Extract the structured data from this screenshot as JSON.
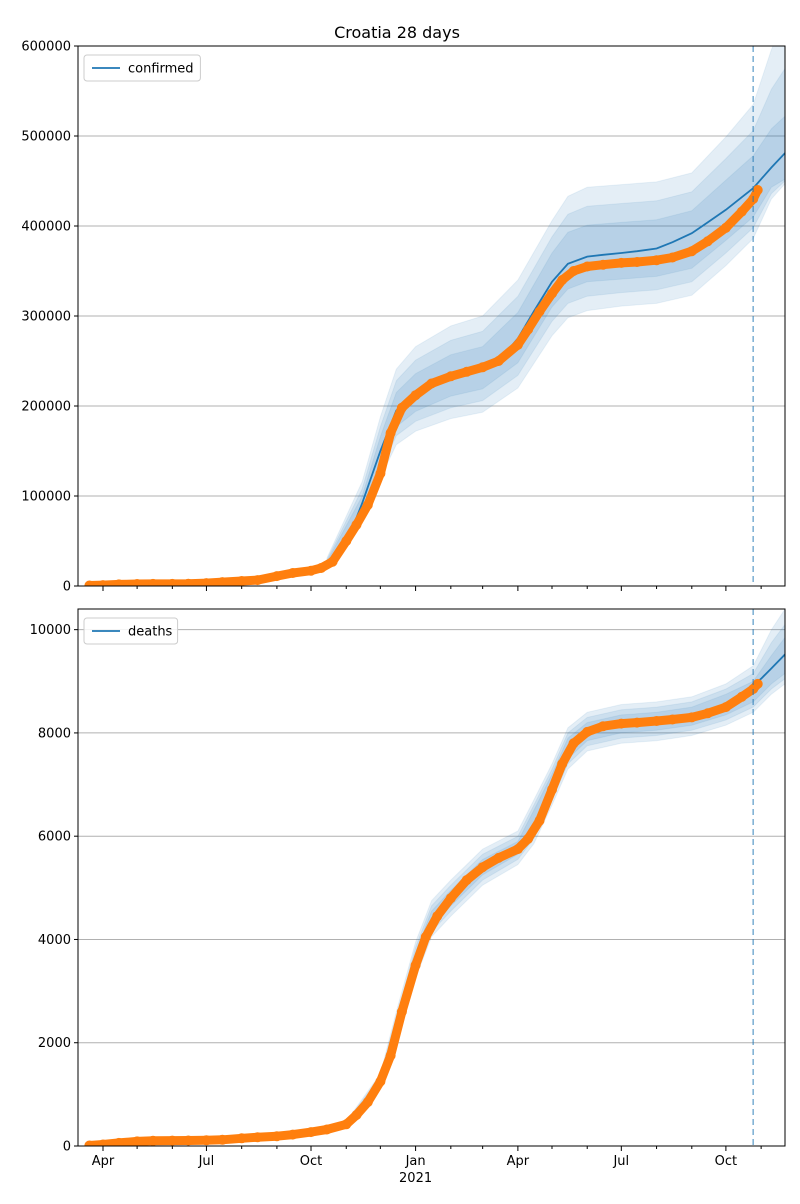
{
  "figure": {
    "title": "Croatia 28 days"
  },
  "colors": {
    "fit_line": "#1f77b4",
    "band": "#1f77b4",
    "observed": "#ff7f0e",
    "grid": "#b0b0b0",
    "cutoff_line": "#1f77b4"
  },
  "chart_data": [
    {
      "type": "line",
      "panel": "top",
      "title": "Croatia 28 days",
      "xlabel": "",
      "ylabel": "",
      "x_ticks": [
        "Apr",
        "Jul",
        "Oct",
        "Jan",
        "Apr",
        "Jul",
        "Oct"
      ],
      "x_year_label": "2021",
      "xlim": [
        "2020-03-10",
        "2021-11-22"
      ],
      "ylim": [
        0,
        600000
      ],
      "y_ticks": [
        0,
        100000,
        200000,
        300000,
        400000,
        500000,
        600000
      ],
      "y_tick_labels": [
        "0",
        "100000",
        "200000",
        "300000",
        "400000",
        "500000",
        "600000"
      ],
      "grid": "horizontal",
      "legend": {
        "position": "top-left",
        "entries": [
          "confirmed"
        ]
      },
      "cutoff_date": "2021-10-25",
      "series": [
        {
          "name": "confirmed",
          "role": "fit",
          "x": [
            "2020-10-15",
            "2020-11-01",
            "2020-11-15",
            "2020-12-01",
            "2020-12-15",
            "2021-01-01",
            "2021-01-15",
            "2021-02-01",
            "2021-02-15",
            "2021-03-01",
            "2021-03-15",
            "2021-04-01",
            "2021-04-15",
            "2021-05-01",
            "2021-05-15",
            "2021-06-01",
            "2021-06-15",
            "2021-07-01",
            "2021-07-15",
            "2021-08-01",
            "2021-08-15",
            "2021-09-01",
            "2021-09-15",
            "2021-10-01",
            "2021-10-15",
            "2021-10-25",
            "2021-11-01",
            "2021-11-10",
            "2021-11-22"
          ],
          "y": [
            25000,
            47000,
            92000,
            150000,
            195000,
            214000,
            225000,
            233000,
            238000,
            242000,
            250000,
            275000,
            305000,
            338000,
            358000,
            366000,
            368000,
            370000,
            372000,
            375000,
            382000,
            392000,
            404000,
            418000,
            432000,
            442000,
            452000,
            465000,
            481000
          ]
        },
        {
          "name": "",
          "role": "observed",
          "x": [
            "2020-03-20",
            "2020-04-01",
            "2020-04-15",
            "2020-05-01",
            "2020-05-15",
            "2020-06-01",
            "2020-06-15",
            "2020-07-01",
            "2020-07-15",
            "2020-08-01",
            "2020-08-15",
            "2020-09-01",
            "2020-09-15",
            "2020-10-01",
            "2020-10-10",
            "2020-10-20",
            "2020-11-01",
            "2020-11-10",
            "2020-11-20",
            "2020-12-01",
            "2020-12-10",
            "2020-12-20",
            "2021-01-01",
            "2021-01-15",
            "2021-02-01",
            "2021-02-15",
            "2021-03-01",
            "2021-03-15",
            "2021-04-01",
            "2021-04-10",
            "2021-04-20",
            "2021-05-01",
            "2021-05-10",
            "2021-05-20",
            "2021-06-01",
            "2021-06-15",
            "2021-07-01",
            "2021-07-15",
            "2021-08-01",
            "2021-08-15",
            "2021-09-01",
            "2021-09-15",
            "2021-10-01",
            "2021-10-15",
            "2021-10-25",
            "2021-10-29"
          ],
          "y": [
            500,
            1000,
            1800,
            2200,
            2300,
            2300,
            2400,
            3200,
            4300,
            5500,
            6500,
            11000,
            14500,
            17000,
            20000,
            27000,
            50000,
            68000,
            90000,
            125000,
            170000,
            198000,
            212000,
            225000,
            233000,
            238000,
            243000,
            250000,
            268000,
            285000,
            305000,
            325000,
            340000,
            350000,
            355000,
            357000,
            359000,
            360000,
            362000,
            365000,
            372000,
            383000,
            398000,
            416000,
            430000,
            440000
          ]
        }
      ],
      "bands": [
        {
          "x": [
            "2020-10-15",
            "2020-11-15",
            "2020-12-01",
            "2020-12-15",
            "2021-01-01",
            "2021-02-01",
            "2021-03-01",
            "2021-04-01",
            "2021-05-01",
            "2021-05-15",
            "2021-06-01",
            "2021-07-01",
            "2021-08-01",
            "2021-09-01",
            "2021-10-01",
            "2021-10-25",
            "2021-11-10",
            "2021-11-22"
          ],
          "lower": [
            23000,
            84000,
            136000,
            177000,
            194000,
            211000,
            219000,
            248000,
            310000,
            330000,
            338000,
            341000,
            344000,
            353000,
            384000,
            410000,
            443000,
            452000
          ],
          "upper": [
            27000,
            100000,
            166000,
            215000,
            236000,
            257000,
            266000,
            304000,
            370000,
            393000,
            401000,
            404000,
            407000,
            417000,
            451000,
            478000,
            508000,
            522000
          ]
        },
        {
          "x": [
            "2020-10-15",
            "2020-11-15",
            "2020-12-01",
            "2020-12-15",
            "2021-01-01",
            "2021-02-01",
            "2021-03-01",
            "2021-04-01",
            "2021-05-01",
            "2021-05-15",
            "2021-06-01",
            "2021-07-01",
            "2021-08-01",
            "2021-09-01",
            "2021-10-01",
            "2021-10-25",
            "2021-11-10",
            "2021-11-22"
          ],
          "lower": [
            21000,
            78000,
            128000,
            167000,
            183000,
            198000,
            206000,
            234000,
            294000,
            314000,
            322000,
            326000,
            329000,
            338000,
            370000,
            398000,
            436000,
            450000
          ],
          "upper": [
            29000,
            108000,
            177000,
            228000,
            251000,
            273000,
            283000,
            322000,
            388000,
            413000,
            422000,
            425000,
            428000,
            438000,
            475000,
            506000,
            552000,
            575000
          ]
        },
        {
          "x": [
            "2020-10-15",
            "2020-11-15",
            "2020-12-01",
            "2020-12-15",
            "2021-01-01",
            "2021-02-01",
            "2021-03-01",
            "2021-04-01",
            "2021-05-01",
            "2021-05-15",
            "2021-06-01",
            "2021-07-01",
            "2021-08-01",
            "2021-09-01",
            "2021-10-01",
            "2021-10-25",
            "2021-11-10",
            "2021-11-22"
          ],
          "lower": [
            19000,
            72000,
            120000,
            157000,
            172000,
            186000,
            193000,
            220000,
            278000,
            298000,
            306000,
            311000,
            314000,
            323000,
            356000,
            386000,
            430000,
            447000
          ],
          "upper": [
            31000,
            116000,
            188000,
            241000,
            266000,
            289000,
            300000,
            340000,
            406000,
            433000,
            443000,
            446000,
            449000,
            459000,
            499000,
            535000,
            596000,
            630000
          ]
        }
      ]
    },
    {
      "type": "line",
      "panel": "bottom",
      "xlabel": "",
      "ylabel": "",
      "x_ticks": [
        "Apr",
        "Jul",
        "Oct",
        "Jan",
        "Apr",
        "Jul",
        "Oct"
      ],
      "x_year_label": "2021",
      "xlim": [
        "2020-03-10",
        "2021-11-22"
      ],
      "ylim": [
        0,
        10400
      ],
      "y_ticks": [
        0,
        2000,
        4000,
        6000,
        8000,
        10000
      ],
      "y_tick_labels": [
        "0",
        "2000",
        "4000",
        "6000",
        "8000",
        "10000"
      ],
      "grid": "horizontal",
      "legend": {
        "position": "top-left",
        "entries": [
          "deaths"
        ]
      },
      "cutoff_date": "2021-10-25",
      "series": [
        {
          "name": "deaths",
          "role": "fit",
          "x": [
            "2021-10-25",
            "2021-11-01",
            "2021-11-10",
            "2021-11-22"
          ],
          "y": [
            8920,
            9050,
            9250,
            9520
          ]
        },
        {
          "name": "",
          "role": "observed",
          "x": [
            "2020-03-20",
            "2020-04-01",
            "2020-04-15",
            "2020-05-01",
            "2020-05-15",
            "2020-06-01",
            "2020-06-15",
            "2020-07-01",
            "2020-07-15",
            "2020-08-01",
            "2020-08-15",
            "2020-09-01",
            "2020-09-15",
            "2020-10-01",
            "2020-10-15",
            "2020-11-01",
            "2020-11-10",
            "2020-11-20",
            "2020-12-01",
            "2020-12-10",
            "2020-12-20",
            "2021-01-01",
            "2021-01-10",
            "2021-01-20",
            "2021-02-01",
            "2021-02-15",
            "2021-03-01",
            "2021-03-15",
            "2021-04-01",
            "2021-04-10",
            "2021-04-20",
            "2021-05-01",
            "2021-05-10",
            "2021-05-20",
            "2021-06-01",
            "2021-06-15",
            "2021-07-01",
            "2021-07-15",
            "2021-08-01",
            "2021-08-15",
            "2021-09-01",
            "2021-09-15",
            "2021-10-01",
            "2021-10-15",
            "2021-10-25",
            "2021-10-29"
          ],
          "y": [
            10,
            30,
            60,
            90,
            100,
            105,
            107,
            110,
            120,
            150,
            170,
            190,
            220,
            270,
            320,
            420,
            600,
            850,
            1250,
            1750,
            2600,
            3500,
            4050,
            4450,
            4800,
            5150,
            5400,
            5580,
            5750,
            5950,
            6300,
            6900,
            7400,
            7800,
            8020,
            8130,
            8180,
            8200,
            8230,
            8260,
            8300,
            8380,
            8500,
            8700,
            8850,
            8950
          ]
        }
      ],
      "bands": [
        {
          "x": [
            "2020-11-01",
            "2020-12-01",
            "2020-12-15",
            "2021-01-01",
            "2021-01-15",
            "2021-02-01",
            "2021-03-01",
            "2021-04-01",
            "2021-04-15",
            "2021-05-01",
            "2021-05-15",
            "2021-06-01",
            "2021-07-01",
            "2021-08-01",
            "2021-09-01",
            "2021-10-01",
            "2021-10-25",
            "2021-11-10",
            "2021-11-22"
          ],
          "lower": [
            410,
            1200,
            2200,
            3450,
            4250,
            4650,
            5250,
            5650,
            6050,
            6800,
            7500,
            7850,
            8000,
            8050,
            8150,
            8350,
            8600,
            8950,
            9150
          ],
          "upper": [
            440,
            1300,
            2400,
            3750,
            4550,
            4950,
            5550,
            5900,
            6500,
            7200,
            7900,
            8200,
            8350,
            8400,
            8500,
            8750,
            9000,
            9500,
            9850
          ]
        },
        {
          "x": [
            "2020-11-01",
            "2020-12-01",
            "2020-12-15",
            "2021-01-01",
            "2021-01-15",
            "2021-02-01",
            "2021-03-01",
            "2021-04-01",
            "2021-04-15",
            "2021-05-01",
            "2021-05-15",
            "2021-06-01",
            "2021-07-01",
            "2021-08-01",
            "2021-09-01",
            "2021-10-01",
            "2021-10-25",
            "2021-11-10",
            "2021-11-22"
          ],
          "lower": [
            390,
            1150,
            2100,
            3350,
            4150,
            4550,
            5150,
            5550,
            5950,
            6700,
            7400,
            7750,
            7900,
            7950,
            8050,
            8250,
            8500,
            8850,
            9050
          ],
          "upper": [
            460,
            1350,
            2500,
            3850,
            4650,
            5050,
            5650,
            6000,
            6600,
            7300,
            8000,
            8300,
            8450,
            8500,
            8600,
            8850,
            9150,
            9750,
            10100
          ]
        },
        {
          "x": [
            "2020-11-01",
            "2020-12-01",
            "2020-12-15",
            "2021-01-01",
            "2021-01-15",
            "2021-02-01",
            "2021-03-01",
            "2021-04-01",
            "2021-04-15",
            "2021-05-01",
            "2021-05-15",
            "2021-06-01",
            "2021-07-01",
            "2021-08-01",
            "2021-09-01",
            "2021-10-01",
            "2021-10-25",
            "2021-11-10",
            "2021-11-22"
          ],
          "lower": [
            370,
            1100,
            2000,
            3250,
            4050,
            4450,
            5050,
            5450,
            5850,
            6600,
            7300,
            7650,
            7800,
            7850,
            7950,
            8150,
            8400,
            8750,
            8950
          ],
          "upper": [
            480,
            1400,
            2600,
            3950,
            4750,
            5150,
            5750,
            6100,
            6700,
            7400,
            8100,
            8400,
            8550,
            8600,
            8700,
            8950,
            9300,
            10000,
            10400
          ]
        }
      ]
    }
  ]
}
